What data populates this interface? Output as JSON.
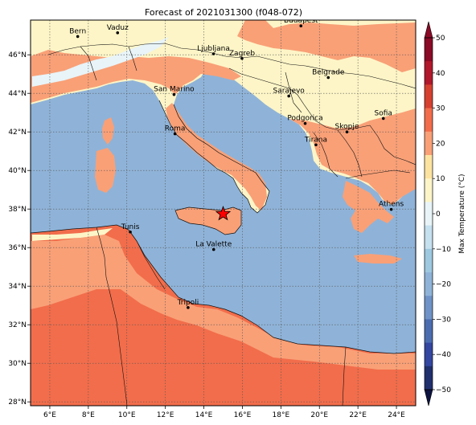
{
  "title": "Forecast of 2021031300 (f048-072)",
  "map": {
    "lon_range": [
      5,
      25
    ],
    "lat_range": [
      27.8,
      47.8
    ],
    "x_ticks": [
      {
        "lon": 6,
        "label": "6°E"
      },
      {
        "lon": 8,
        "label": "8°E"
      },
      {
        "lon": 10,
        "label": "10°E"
      },
      {
        "lon": 12,
        "label": "12°E"
      },
      {
        "lon": 14,
        "label": "14°E"
      },
      {
        "lon": 16,
        "label": "16°E"
      },
      {
        "lon": 18,
        "label": "18°E"
      },
      {
        "lon": 20,
        "label": "20°E"
      },
      {
        "lon": 22,
        "label": "22°E"
      },
      {
        "lon": 24,
        "label": "24°E"
      }
    ],
    "y_ticks": [
      {
        "lat": 28,
        "label": "28°N"
      },
      {
        "lat": 30,
        "label": "30°N"
      },
      {
        "lat": 32,
        "label": "32°N"
      },
      {
        "lat": 34,
        "label": "34°N"
      },
      {
        "lat": 36,
        "label": "36°N"
      },
      {
        "lat": 38,
        "label": "38°N"
      },
      {
        "lat": 40,
        "label": "40°N"
      },
      {
        "lat": 42,
        "label": "42°N"
      },
      {
        "lat": 44,
        "label": "44°N"
      },
      {
        "lat": 46,
        "label": "46°N"
      }
    ],
    "cities": [
      {
        "name": "Bern",
        "lon": 7.45,
        "lat": 46.95
      },
      {
        "name": "Vaduz",
        "lon": 9.52,
        "lat": 47.14
      },
      {
        "name": "Budapest",
        "lon": 19.04,
        "lat": 47.5
      },
      {
        "name": "Ljubljana",
        "lon": 14.5,
        "lat": 46.05
      },
      {
        "name": "Zagreb",
        "lon": 15.98,
        "lat": 45.81
      },
      {
        "name": "Belgrade",
        "lon": 20.46,
        "lat": 44.82
      },
      {
        "name": "San Marino",
        "lon": 12.45,
        "lat": 43.94
      },
      {
        "name": "Sarajevo",
        "lon": 18.41,
        "lat": 43.86
      },
      {
        "name": "Sofia",
        "lon": 23.32,
        "lat": 42.7
      },
      {
        "name": "Podgorica",
        "lon": 19.26,
        "lat": 42.44
      },
      {
        "name": "Skopje",
        "lon": 21.43,
        "lat": 42.0
      },
      {
        "name": "Roma",
        "lon": 12.5,
        "lat": 41.9
      },
      {
        "name": "Tirana",
        "lon": 19.82,
        "lat": 41.33
      },
      {
        "name": "Athens",
        "lon": 23.73,
        "lat": 37.98
      },
      {
        "name": "Tunis",
        "lon": 10.18,
        "lat": 36.81
      },
      {
        "name": "La Valette",
        "lon": 14.51,
        "lat": 35.9
      },
      {
        "name": "Tripoli",
        "lon": 13.18,
        "lat": 32.89
      }
    ],
    "marker": {
      "lon": 15.0,
      "lat": 37.75,
      "color": "#ff0000"
    }
  },
  "colorbar": {
    "label": "Max Temperature (°C)",
    "ticks": [
      "50",
      "40",
      "30",
      "20",
      "10",
      "0",
      "−10",
      "−20",
      "−30",
      "−40",
      "−50"
    ],
    "colors_top_to_bottom": [
      "#8b0a26",
      "#b2182b",
      "#d6402f",
      "#f26d4b",
      "#f9a077",
      "#fde3a0",
      "#fdf5c7",
      "#e8f4f8",
      "#c5e0ee",
      "#9dc8e0",
      "#8fb3d8",
      "#6f93c8",
      "#4b6db0",
      "#3346a0",
      "#20306e"
    ]
  },
  "colors": {
    "sea": "#8fb3d8",
    "land_warm": "#fdf5c7",
    "land_mild": "#f9a077",
    "land_hot": "#f26d4b",
    "land_cold": "#e8f4f8"
  }
}
